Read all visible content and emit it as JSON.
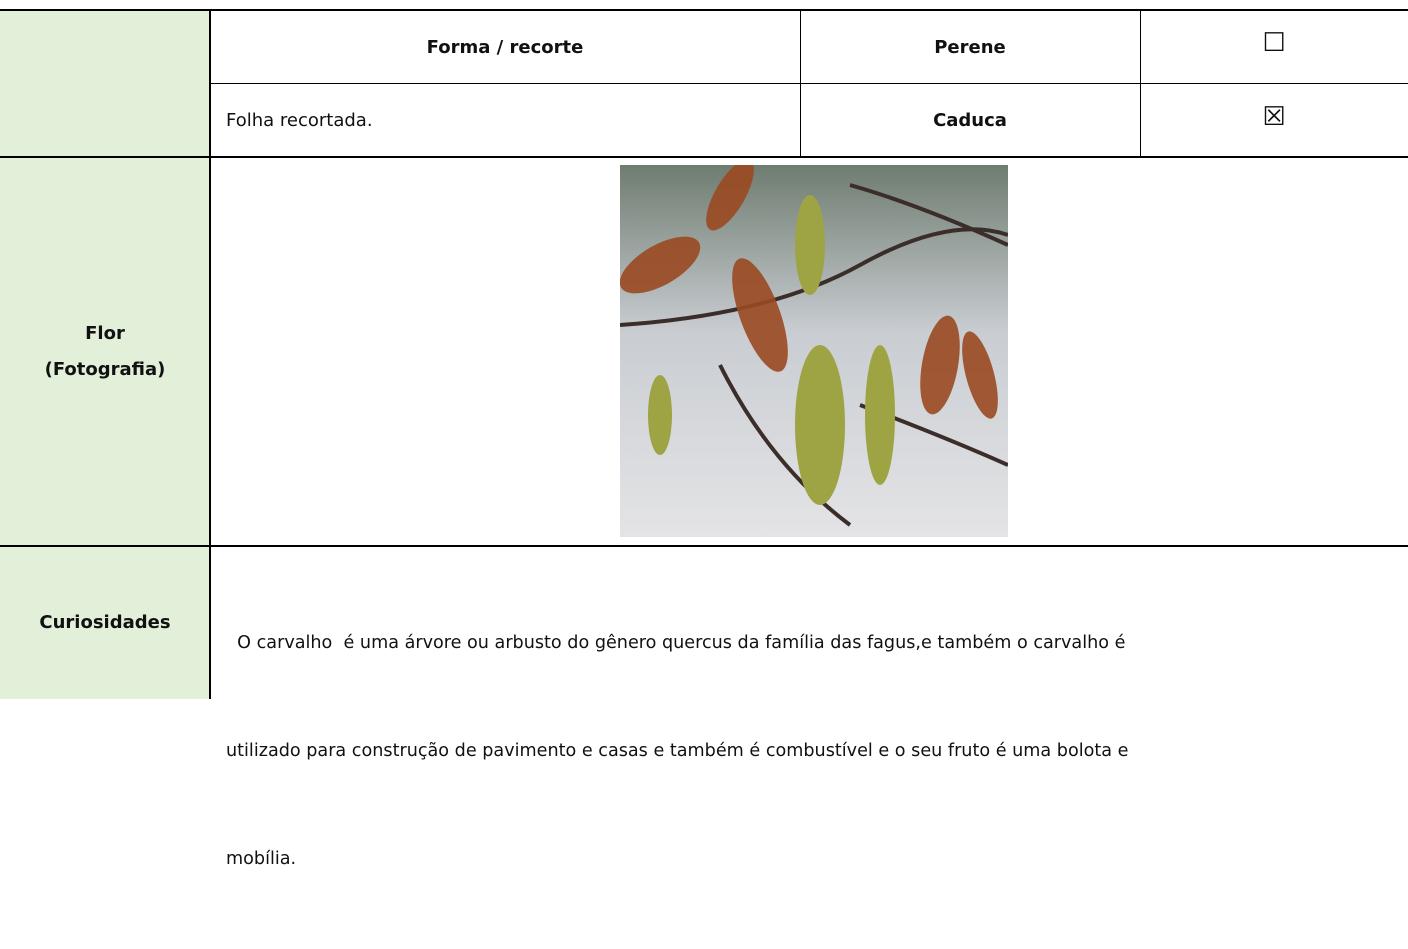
{
  "leaf_table": {
    "header": "Forma / recorte",
    "shape": "Folha recortada.",
    "options": [
      {
        "label": "Perene",
        "box": "☐"
      },
      {
        "label": "Caduca",
        "box": "☒"
      }
    ]
  },
  "flower": {
    "label_lines": [
      "Flor",
      "(Fotografia)"
    ]
  },
  "curiosities": {
    "label": "Curiosidades",
    "lines": [
      "  O carvalho  é uma árvore ou arbusto do gênero quercus da família das fagus,e também o carvalho é",
      "utilizado para construção de pavimento e casas e também é combustível e o seu fruto é uma bolota e",
      "mobília."
    ]
  }
}
